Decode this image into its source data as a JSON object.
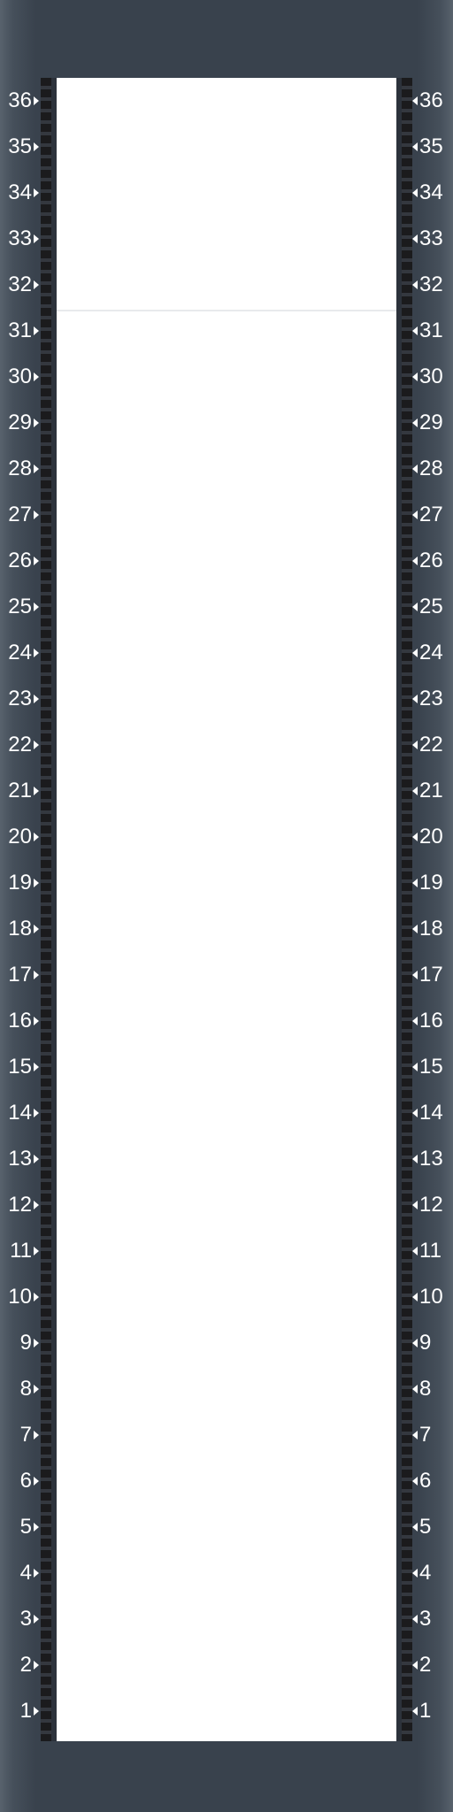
{
  "rack": {
    "units": [
      "36",
      "35",
      "34",
      "33",
      "32",
      "31",
      "30",
      "29",
      "28",
      "27",
      "26",
      "25",
      "24",
      "23",
      "22",
      "21",
      "20",
      "19",
      "18",
      "17",
      "16",
      "15",
      "14",
      "13",
      "12",
      "11",
      "10",
      "9",
      "8",
      "7",
      "6",
      "5",
      "4",
      "3",
      "2",
      "1"
    ],
    "unit_count": 36,
    "colors": {
      "frame": "#39424d",
      "frame_edge": "#58626d",
      "rail": "#1b1b1d",
      "slot": "#ffffff",
      "label": "#ffffff"
    },
    "markers": {
      "left": "triangle-right-icon",
      "right": "triangle-left-icon"
    }
  }
}
